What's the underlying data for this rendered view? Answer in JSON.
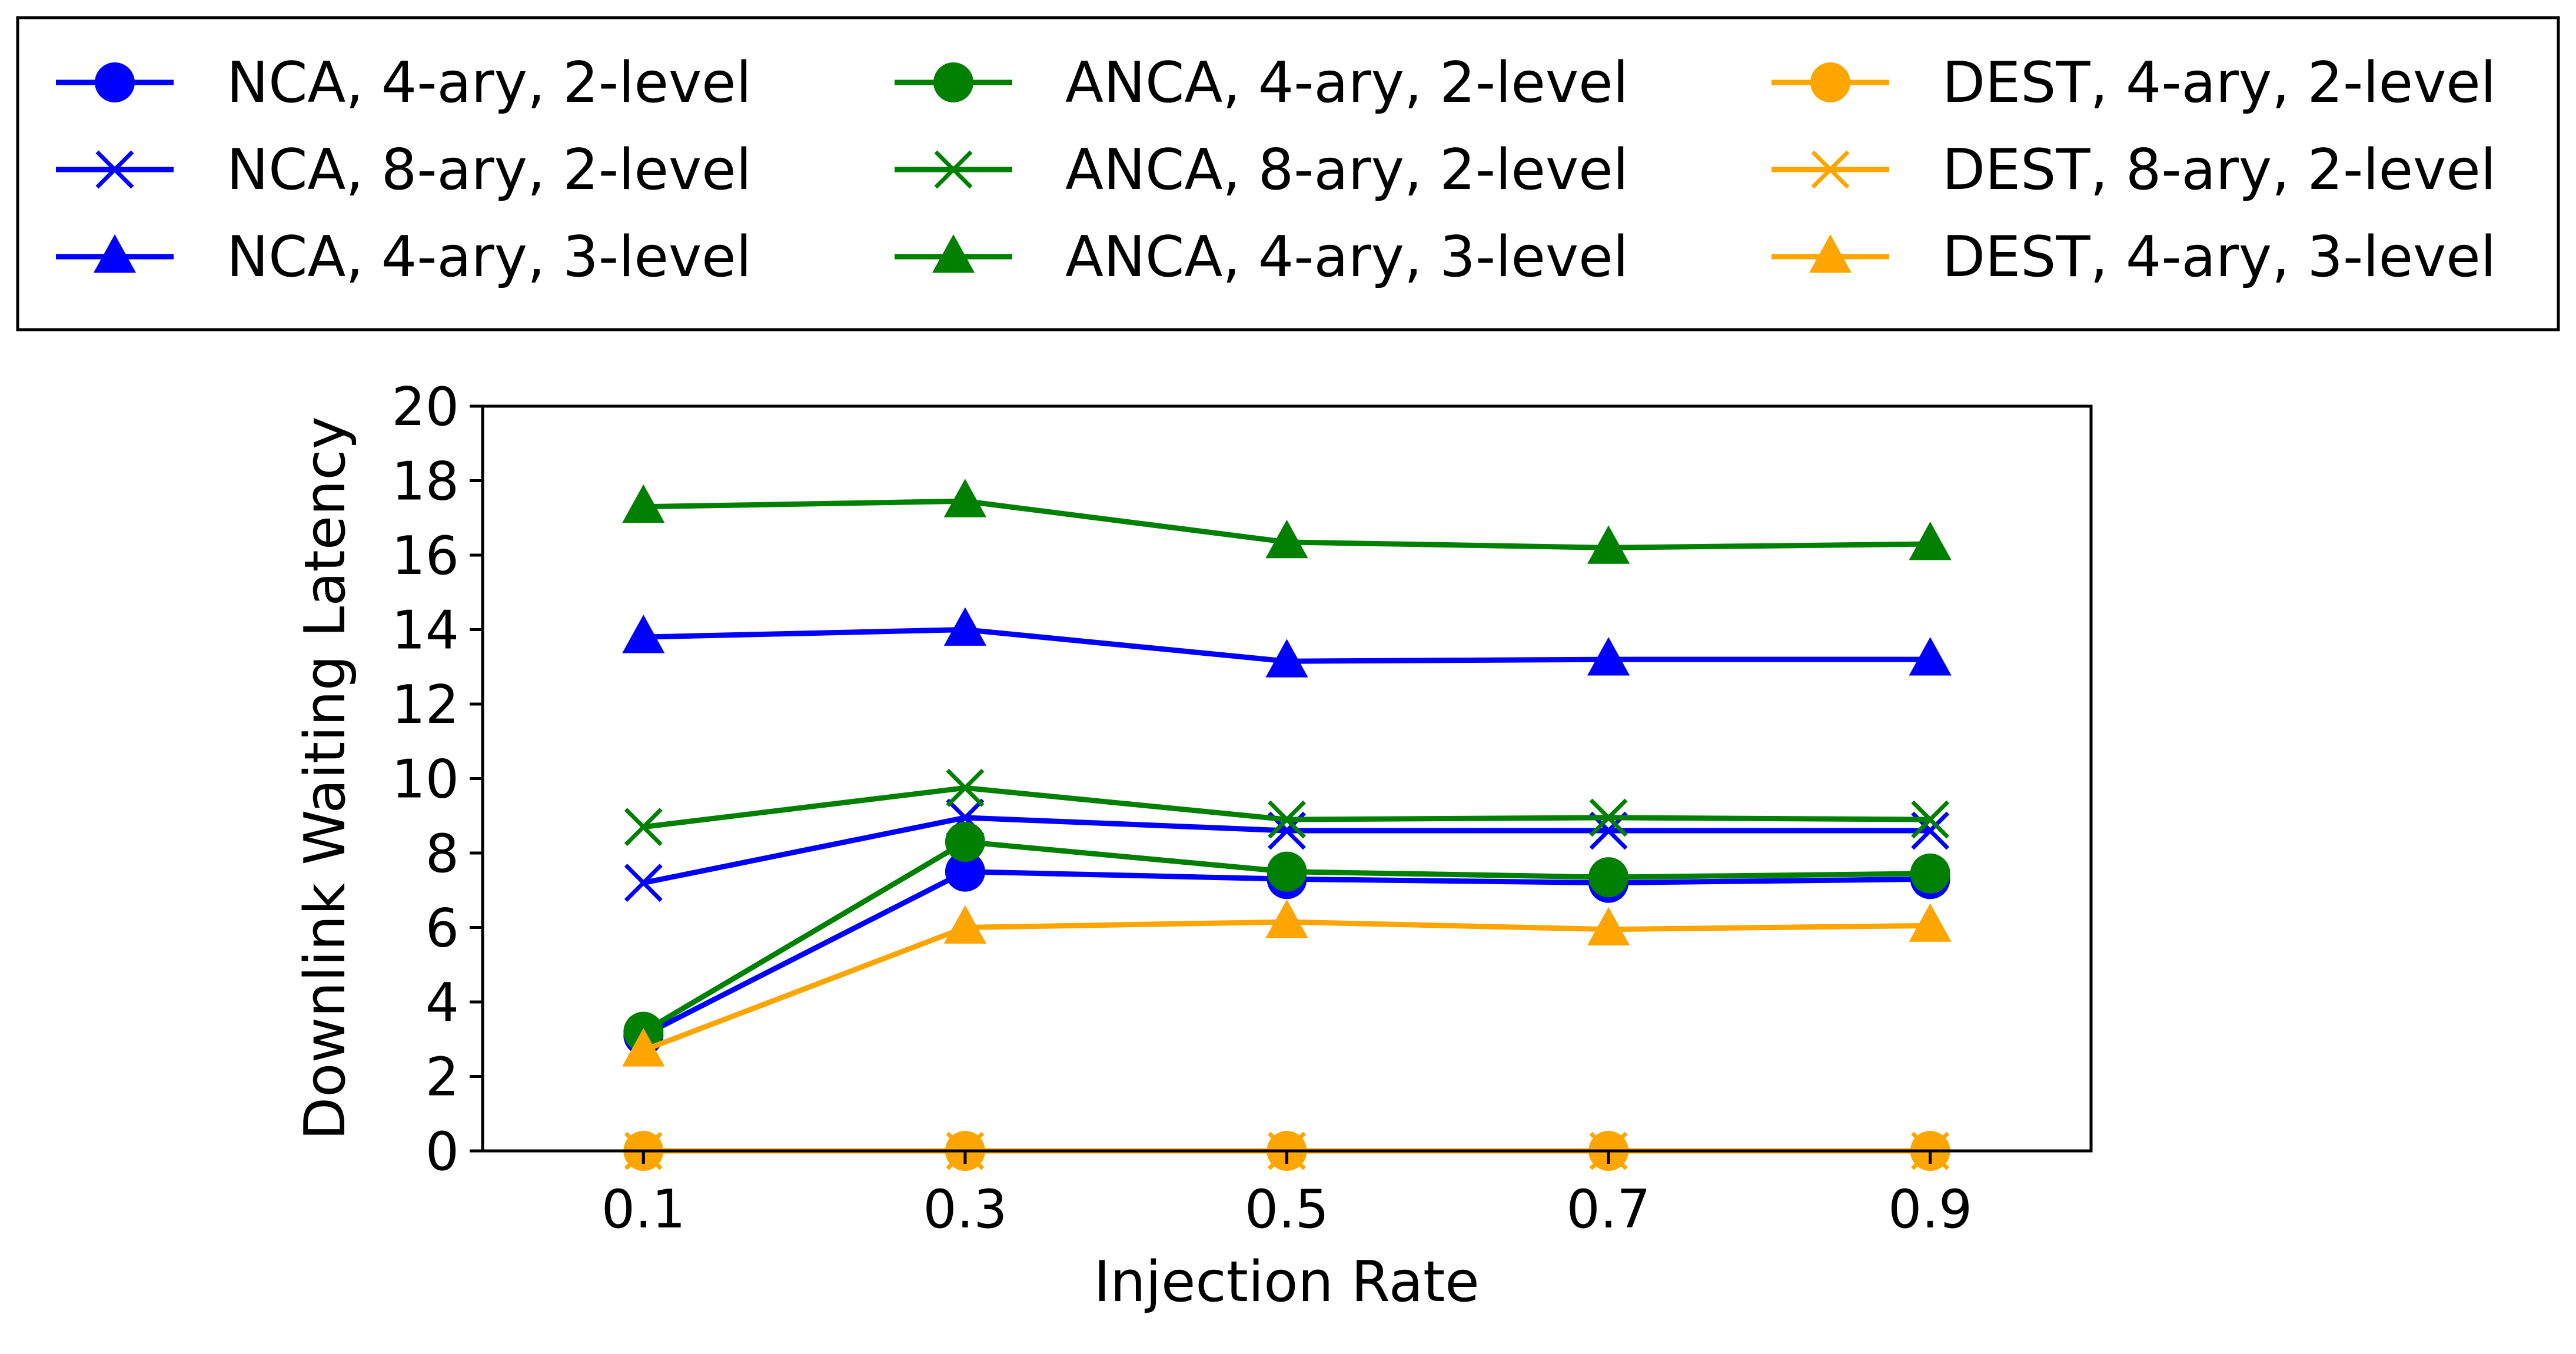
{
  "chart_data": {
    "type": "line",
    "title": "",
    "xlabel": "Injection Rate",
    "ylabel": "Downlink Waiting Latency",
    "x": [
      0.1,
      0.3,
      0.5,
      0.7,
      0.9
    ],
    "x_tick_labels": [
      "0.1",
      "0.3",
      "0.5",
      "0.7",
      "0.9"
    ],
    "xlim": [
      0.0,
      1.0
    ],
    "ylim": [
      0,
      20
    ],
    "y_ticks": [
      0,
      2,
      4,
      6,
      8,
      10,
      12,
      14,
      16,
      18,
      20
    ],
    "grid": false,
    "legend_placement": "top, outside plot, 3 columns",
    "series": [
      {
        "name": "NCA, 4-ary, 2-level",
        "color": "#0000ff",
        "marker": "circle",
        "values": [
          3.1,
          7.5,
          7.3,
          7.2,
          7.3
        ]
      },
      {
        "name": "NCA, 8-ary, 2-level",
        "color": "#0000ff",
        "marker": "x",
        "values": [
          7.2,
          8.95,
          8.6,
          8.6,
          8.6
        ]
      },
      {
        "name": "NCA, 4-ary, 3-level",
        "color": "#0000ff",
        "marker": "triangle",
        "values": [
          13.8,
          14.0,
          13.15,
          13.2,
          13.2
        ]
      },
      {
        "name": "ANCA, 4-ary, 2-level",
        "color": "#008000",
        "marker": "circle",
        "values": [
          3.2,
          8.3,
          7.5,
          7.35,
          7.45
        ]
      },
      {
        "name": "ANCA, 8-ary, 2-level",
        "color": "#008000",
        "marker": "x",
        "values": [
          8.7,
          9.75,
          8.9,
          8.95,
          8.9
        ]
      },
      {
        "name": "ANCA, 4-ary, 3-level",
        "color": "#008000",
        "marker": "triangle",
        "values": [
          17.3,
          17.45,
          16.35,
          16.2,
          16.3
        ]
      },
      {
        "name": "DEST, 4-ary, 2-level",
        "color": "#ffa500",
        "marker": "circle",
        "values": [
          0,
          0,
          0,
          0,
          0
        ]
      },
      {
        "name": "DEST, 8-ary, 2-level",
        "color": "#ffa500",
        "marker": "x",
        "values": [
          0,
          0,
          0,
          0,
          0
        ]
      },
      {
        "name": "DEST, 4-ary, 3-level",
        "color": "#ffa500",
        "marker": "triangle",
        "values": [
          2.7,
          6.0,
          6.15,
          5.95,
          6.05
        ]
      }
    ]
  }
}
